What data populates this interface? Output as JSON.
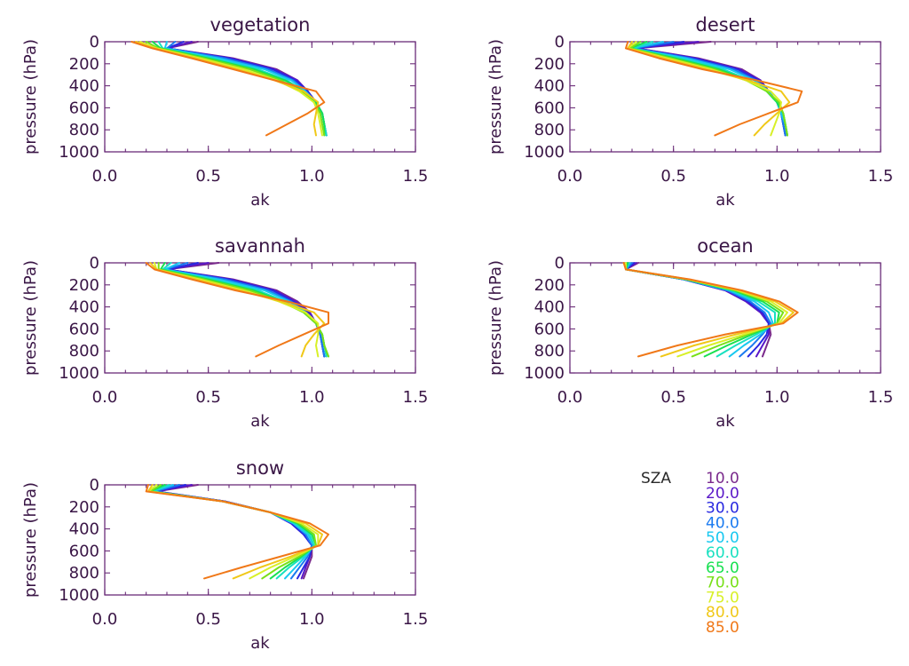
{
  "legend": {
    "title": "SZA",
    "entries": [
      "10.0",
      "20.0",
      "30.0",
      "40.0",
      "50.0",
      "60.0",
      "65.0",
      "70.0",
      "75.0",
      "80.0",
      "85.0"
    ],
    "colors": [
      "#7a2a8c",
      "#5a18c8",
      "#2828e0",
      "#1a7af0",
      "#18c8f0",
      "#18e0c0",
      "#18e050",
      "#78e018",
      "#d8f028",
      "#f0c818",
      "#f07818"
    ]
  },
  "chart_data": [
    {
      "type": "line",
      "title": "vegetation",
      "xlabel": "ak",
      "ylabel": "pressure (hPa)",
      "xlim": [
        0,
        1.5
      ],
      "ylim": [
        1000,
        0
      ],
      "xticks": [
        "0.0",
        "0.5",
        "1.0",
        "1.5"
      ],
      "yticks": [
        "0",
        "200",
        "400",
        "600",
        "800",
        "1000"
      ],
      "pressure": [
        0,
        60,
        150,
        250,
        350,
        450,
        550,
        650,
        750,
        850
      ],
      "series": [
        {
          "name": "10.0",
          "values": [
            0.45,
            0.3,
            0.62,
            0.83,
            0.93,
            0.98,
            1.02,
            1.05,
            1.06,
            1.07
          ]
        },
        {
          "name": "20.0",
          "values": [
            0.42,
            0.3,
            0.61,
            0.82,
            0.93,
            0.98,
            1.02,
            1.05,
            1.06,
            1.07
          ]
        },
        {
          "name": "30.0",
          "values": [
            0.38,
            0.3,
            0.6,
            0.81,
            0.92,
            0.98,
            1.02,
            1.05,
            1.06,
            1.07
          ]
        },
        {
          "name": "40.0",
          "values": [
            0.34,
            0.3,
            0.58,
            0.79,
            0.91,
            0.97,
            1.02,
            1.05,
            1.06,
            1.07
          ]
        },
        {
          "name": "50.0",
          "values": [
            0.3,
            0.29,
            0.55,
            0.77,
            0.9,
            0.97,
            1.02,
            1.05,
            1.06,
            1.07
          ]
        },
        {
          "name": "60.0",
          "values": [
            0.26,
            0.28,
            0.52,
            0.74,
            0.88,
            0.96,
            1.02,
            1.05,
            1.06,
            1.07
          ]
        },
        {
          "name": "65.0",
          "values": [
            0.23,
            0.27,
            0.5,
            0.72,
            0.87,
            0.96,
            1.02,
            1.05,
            1.06,
            1.06
          ]
        },
        {
          "name": "70.0",
          "values": [
            0.2,
            0.26,
            0.48,
            0.7,
            0.85,
            0.95,
            1.01,
            1.04,
            1.05,
            1.06
          ]
        },
        {
          "name": "75.0",
          "values": [
            0.17,
            0.25,
            0.46,
            0.67,
            0.83,
            0.94,
            1.01,
            1.03,
            1.04,
            1.05
          ]
        },
        {
          "name": "80.0",
          "values": [
            0.15,
            0.24,
            0.44,
            0.64,
            0.82,
            0.96,
            1.03,
            1.02,
            1.01,
            1.02
          ]
        },
        {
          "name": "85.0",
          "values": [
            0.13,
            0.23,
            0.42,
            0.62,
            0.82,
            1.02,
            1.06,
            0.98,
            0.88,
            0.78
          ]
        }
      ]
    },
    {
      "type": "line",
      "title": "desert",
      "xlabel": "ak",
      "ylabel": "pressure (hPa)",
      "xlim": [
        0,
        1.5
      ],
      "ylim": [
        1000,
        0
      ],
      "xticks": [
        "0.0",
        "0.5",
        "1.0",
        "1.5"
      ],
      "yticks": [
        "0",
        "200",
        "400",
        "600",
        "800",
        "1000"
      ],
      "pressure": [
        0,
        60,
        150,
        250,
        350,
        450,
        550,
        650,
        750,
        850
      ],
      "series": [
        {
          "name": "10.0",
          "values": [
            0.68,
            0.32,
            0.62,
            0.83,
            0.92,
            0.96,
            1.0,
            1.02,
            1.03,
            1.04
          ]
        },
        {
          "name": "20.0",
          "values": [
            0.62,
            0.32,
            0.61,
            0.82,
            0.92,
            0.96,
            1.0,
            1.02,
            1.03,
            1.04
          ]
        },
        {
          "name": "30.0",
          "values": [
            0.55,
            0.31,
            0.6,
            0.81,
            0.91,
            0.96,
            1.0,
            1.02,
            1.03,
            1.04
          ]
        },
        {
          "name": "40.0",
          "values": [
            0.5,
            0.31,
            0.58,
            0.79,
            0.9,
            0.96,
            1.0,
            1.02,
            1.03,
            1.04
          ]
        },
        {
          "name": "50.0",
          "values": [
            0.45,
            0.3,
            0.56,
            0.77,
            0.89,
            0.96,
            1.0,
            1.02,
            1.04,
            1.05
          ]
        },
        {
          "name": "60.0",
          "values": [
            0.4,
            0.3,
            0.53,
            0.74,
            0.87,
            0.95,
            1.0,
            1.03,
            1.04,
            1.05
          ]
        },
        {
          "name": "65.0",
          "values": [
            0.37,
            0.29,
            0.51,
            0.72,
            0.86,
            0.95,
            1.0,
            1.03,
            1.04,
            1.05
          ]
        },
        {
          "name": "70.0",
          "values": [
            0.34,
            0.29,
            0.49,
            0.7,
            0.85,
            0.95,
            1.01,
            1.03,
            1.04,
            1.05
          ]
        },
        {
          "name": "75.0",
          "values": [
            0.32,
            0.28,
            0.47,
            0.68,
            0.85,
            0.97,
            1.02,
            1.01,
            0.99,
            0.97
          ]
        },
        {
          "name": "80.0",
          "values": [
            0.3,
            0.28,
            0.45,
            0.66,
            0.86,
            1.02,
            1.06,
            1.0,
            0.94,
            0.89
          ]
        },
        {
          "name": "85.0",
          "values": [
            0.28,
            0.27,
            0.43,
            0.64,
            0.9,
            1.12,
            1.1,
            0.96,
            0.82,
            0.7
          ]
        }
      ]
    },
    {
      "type": "line",
      "title": "savannah",
      "xlabel": "ak",
      "ylabel": "pressure (hPa)",
      "xlim": [
        0,
        1.5
      ],
      "ylim": [
        1000,
        0
      ],
      "xticks": [
        "0.0",
        "0.5",
        "1.0",
        "1.5"
      ],
      "yticks": [
        "0",
        "200",
        "400",
        "600",
        "800",
        "1000"
      ],
      "pressure": [
        0,
        60,
        150,
        250,
        350,
        450,
        550,
        650,
        750,
        850
      ],
      "series": [
        {
          "name": "10.0",
          "values": [
            0.55,
            0.3,
            0.62,
            0.83,
            0.93,
            0.99,
            1.02,
            1.04,
            1.05,
            1.06
          ]
        },
        {
          "name": "20.0",
          "values": [
            0.5,
            0.3,
            0.61,
            0.82,
            0.92,
            0.99,
            1.02,
            1.04,
            1.05,
            1.06
          ]
        },
        {
          "name": "30.0",
          "values": [
            0.45,
            0.3,
            0.6,
            0.81,
            0.91,
            0.98,
            1.02,
            1.04,
            1.05,
            1.06
          ]
        },
        {
          "name": "40.0",
          "values": [
            0.4,
            0.29,
            0.58,
            0.79,
            0.9,
            0.97,
            1.02,
            1.04,
            1.05,
            1.06
          ]
        },
        {
          "name": "50.0",
          "values": [
            0.36,
            0.29,
            0.55,
            0.77,
            0.89,
            0.97,
            1.02,
            1.05,
            1.06,
            1.07
          ]
        },
        {
          "name": "60.0",
          "values": [
            0.32,
            0.28,
            0.52,
            0.74,
            0.87,
            0.96,
            1.02,
            1.05,
            1.06,
            1.07
          ]
        },
        {
          "name": "65.0",
          "values": [
            0.29,
            0.27,
            0.5,
            0.72,
            0.86,
            0.96,
            1.02,
            1.05,
            1.06,
            1.08
          ]
        },
        {
          "name": "70.0",
          "values": [
            0.26,
            0.26,
            0.48,
            0.7,
            0.85,
            0.96,
            1.02,
            1.05,
            1.06,
            1.08
          ]
        },
        {
          "name": "75.0",
          "values": [
            0.24,
            0.25,
            0.46,
            0.67,
            0.84,
            0.97,
            1.03,
            1.03,
            1.02,
            1.03
          ]
        },
        {
          "name": "80.0",
          "values": [
            0.22,
            0.25,
            0.44,
            0.65,
            0.85,
            1.01,
            1.06,
            1.01,
            0.97,
            0.95
          ]
        },
        {
          "name": "85.0",
          "values": [
            0.2,
            0.24,
            0.42,
            0.63,
            0.88,
            1.08,
            1.08,
            0.96,
            0.84,
            0.73
          ]
        }
      ]
    },
    {
      "type": "line",
      "title": "ocean",
      "xlabel": "ak",
      "ylabel": "pressure (hPa)",
      "xlim": [
        0,
        1.5
      ],
      "ylim": [
        1000,
        0
      ],
      "xticks": [
        "0.0",
        "0.5",
        "1.0",
        "1.5"
      ],
      "yticks": [
        "0",
        "200",
        "400",
        "600",
        "800",
        "1000"
      ],
      "pressure": [
        0,
        60,
        150,
        250,
        350,
        450,
        550,
        650,
        750,
        850
      ],
      "series": [
        {
          "name": "10.0",
          "values": [
            0.33,
            0.27,
            0.55,
            0.75,
            0.85,
            0.92,
            0.96,
            0.97,
            0.95,
            0.93
          ]
        },
        {
          "name": "20.0",
          "values": [
            0.32,
            0.27,
            0.55,
            0.75,
            0.85,
            0.92,
            0.96,
            0.96,
            0.93,
            0.9
          ]
        },
        {
          "name": "30.0",
          "values": [
            0.31,
            0.27,
            0.55,
            0.76,
            0.86,
            0.93,
            0.96,
            0.95,
            0.91,
            0.86
          ]
        },
        {
          "name": "40.0",
          "values": [
            0.3,
            0.27,
            0.55,
            0.76,
            0.87,
            0.94,
            0.97,
            0.93,
            0.88,
            0.82
          ]
        },
        {
          "name": "50.0",
          "values": [
            0.29,
            0.27,
            0.56,
            0.77,
            0.89,
            0.96,
            0.98,
            0.92,
            0.84,
            0.77
          ]
        },
        {
          "name": "60.0",
          "values": [
            0.28,
            0.27,
            0.56,
            0.78,
            0.91,
            0.99,
            0.99,
            0.9,
            0.8,
            0.71
          ]
        },
        {
          "name": "65.0",
          "values": [
            0.28,
            0.27,
            0.56,
            0.79,
            0.93,
            1.01,
            1.0,
            0.88,
            0.76,
            0.65
          ]
        },
        {
          "name": "70.0",
          "values": [
            0.27,
            0.27,
            0.57,
            0.8,
            0.95,
            1.03,
            1.0,
            0.86,
            0.72,
            0.59
          ]
        },
        {
          "name": "75.0",
          "values": [
            0.27,
            0.27,
            0.57,
            0.81,
            0.97,
            1.05,
            1.01,
            0.84,
            0.67,
            0.52
          ]
        },
        {
          "name": "80.0",
          "values": [
            0.26,
            0.27,
            0.57,
            0.82,
            0.99,
            1.08,
            1.02,
            0.8,
            0.6,
            0.44
          ]
        },
        {
          "name": "85.0",
          "values": [
            0.26,
            0.27,
            0.58,
            0.83,
            1.01,
            1.1,
            1.03,
            0.75,
            0.52,
            0.33
          ]
        }
      ]
    },
    {
      "type": "line",
      "title": "snow",
      "xlabel": "ak",
      "ylabel": "pressure (hPa)",
      "xlim": [
        0,
        1.5
      ],
      "ylim": [
        1000,
        0
      ],
      "xticks": [
        "0.0",
        "0.5",
        "1.0",
        "1.5"
      ],
      "yticks": [
        "0",
        "200",
        "400",
        "600",
        "800",
        "1000"
      ],
      "pressure": [
        0,
        60,
        150,
        250,
        350,
        450,
        550,
        650,
        750,
        850
      ],
      "series": [
        {
          "name": "10.0",
          "values": [
            0.45,
            0.25,
            0.58,
            0.8,
            0.9,
            0.96,
            1.0,
            1.0,
            0.98,
            0.96
          ]
        },
        {
          "name": "20.0",
          "values": [
            0.42,
            0.25,
            0.58,
            0.8,
            0.9,
            0.96,
            1.0,
            0.99,
            0.97,
            0.95
          ]
        },
        {
          "name": "30.0",
          "values": [
            0.39,
            0.24,
            0.58,
            0.8,
            0.9,
            0.96,
            1.0,
            0.99,
            0.96,
            0.93
          ]
        },
        {
          "name": "40.0",
          "values": [
            0.36,
            0.24,
            0.57,
            0.8,
            0.91,
            0.97,
            1.0,
            0.98,
            0.94,
            0.9
          ]
        },
        {
          "name": "50.0",
          "values": [
            0.33,
            0.23,
            0.57,
            0.8,
            0.91,
            0.98,
            1.01,
            0.97,
            0.92,
            0.87
          ]
        },
        {
          "name": "60.0",
          "values": [
            0.31,
            0.23,
            0.57,
            0.8,
            0.92,
            0.99,
            1.01,
            0.96,
            0.89,
            0.83
          ]
        },
        {
          "name": "65.0",
          "values": [
            0.29,
            0.22,
            0.57,
            0.8,
            0.93,
            1.0,
            1.02,
            0.95,
            0.87,
            0.8
          ]
        },
        {
          "name": "70.0",
          "values": [
            0.27,
            0.22,
            0.57,
            0.8,
            0.94,
            1.01,
            1.02,
            0.94,
            0.84,
            0.76
          ]
        },
        {
          "name": "75.0",
          "values": [
            0.25,
            0.21,
            0.57,
            0.8,
            0.95,
            1.03,
            1.03,
            0.92,
            0.8,
            0.7
          ]
        },
        {
          "name": "80.0",
          "values": [
            0.23,
            0.21,
            0.57,
            0.8,
            0.97,
            1.05,
            1.03,
            0.9,
            0.75,
            0.62
          ]
        },
        {
          "name": "85.0",
          "values": [
            0.21,
            0.2,
            0.57,
            0.8,
            0.99,
            1.08,
            1.04,
            0.85,
            0.66,
            0.48
          ]
        }
      ]
    }
  ]
}
